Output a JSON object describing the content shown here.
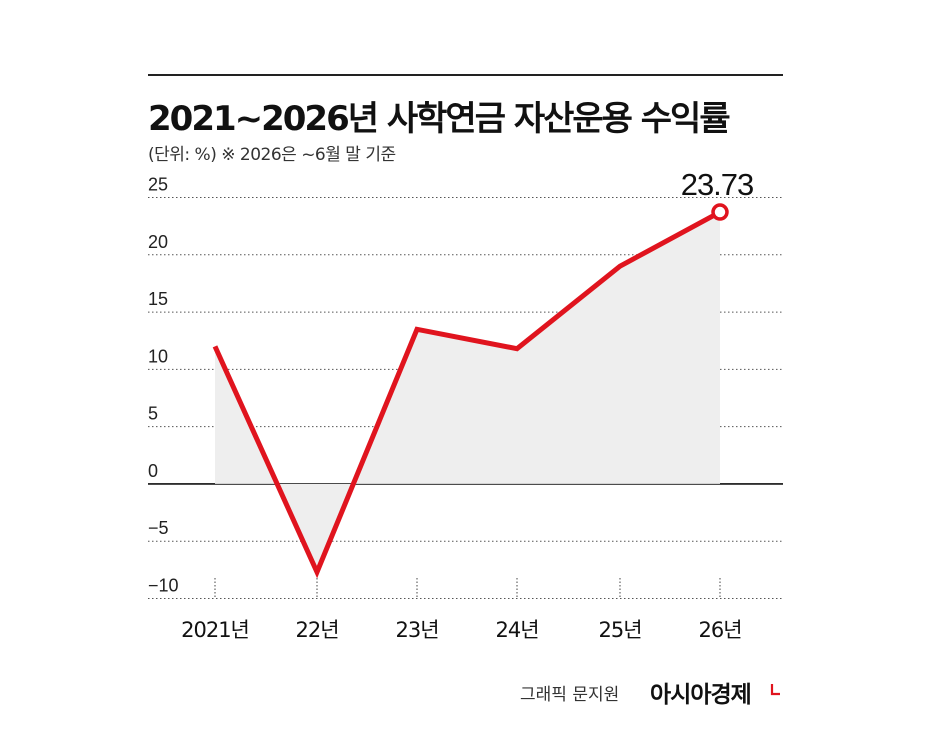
{
  "header": {
    "title": "2021~2026년 사학연금 자산운용 수익률",
    "subtitle": "(단위: %)  ※ 2026은 ~6월 말 기준"
  },
  "footer": {
    "credit": "그래픽 문지원",
    "brand": "아시아경제"
  },
  "colors": {
    "line": "#e0141e",
    "area": "#eeeeee",
    "grid": "#555555",
    "marker_fill": "#ffffff"
  },
  "chart_data": {
    "type": "line",
    "title": "2021~2026년 사학연금 자산운용 수익률",
    "subtitle": "(단위: %)  ※ 2026은 ~6월 말 기준",
    "categories": [
      "2021년",
      "22년",
      "23년",
      "24년",
      "25년",
      "26년"
    ],
    "series": [
      {
        "values": [
          12.0,
          -7.7,
          13.5,
          11.8,
          19.0,
          23.73
        ]
      }
    ],
    "y_ticks": [
      "25",
      "20",
      "15",
      "10",
      "5",
      "0",
      "−5",
      "−10"
    ],
    "y_tick_values": [
      25,
      20,
      15,
      10,
      5,
      0,
      -5,
      -10
    ],
    "ylim": [
      -10,
      25
    ],
    "annotations": [
      {
        "category": "26년",
        "text": "23.73"
      }
    ],
    "grid": true,
    "area_fill": true
  }
}
